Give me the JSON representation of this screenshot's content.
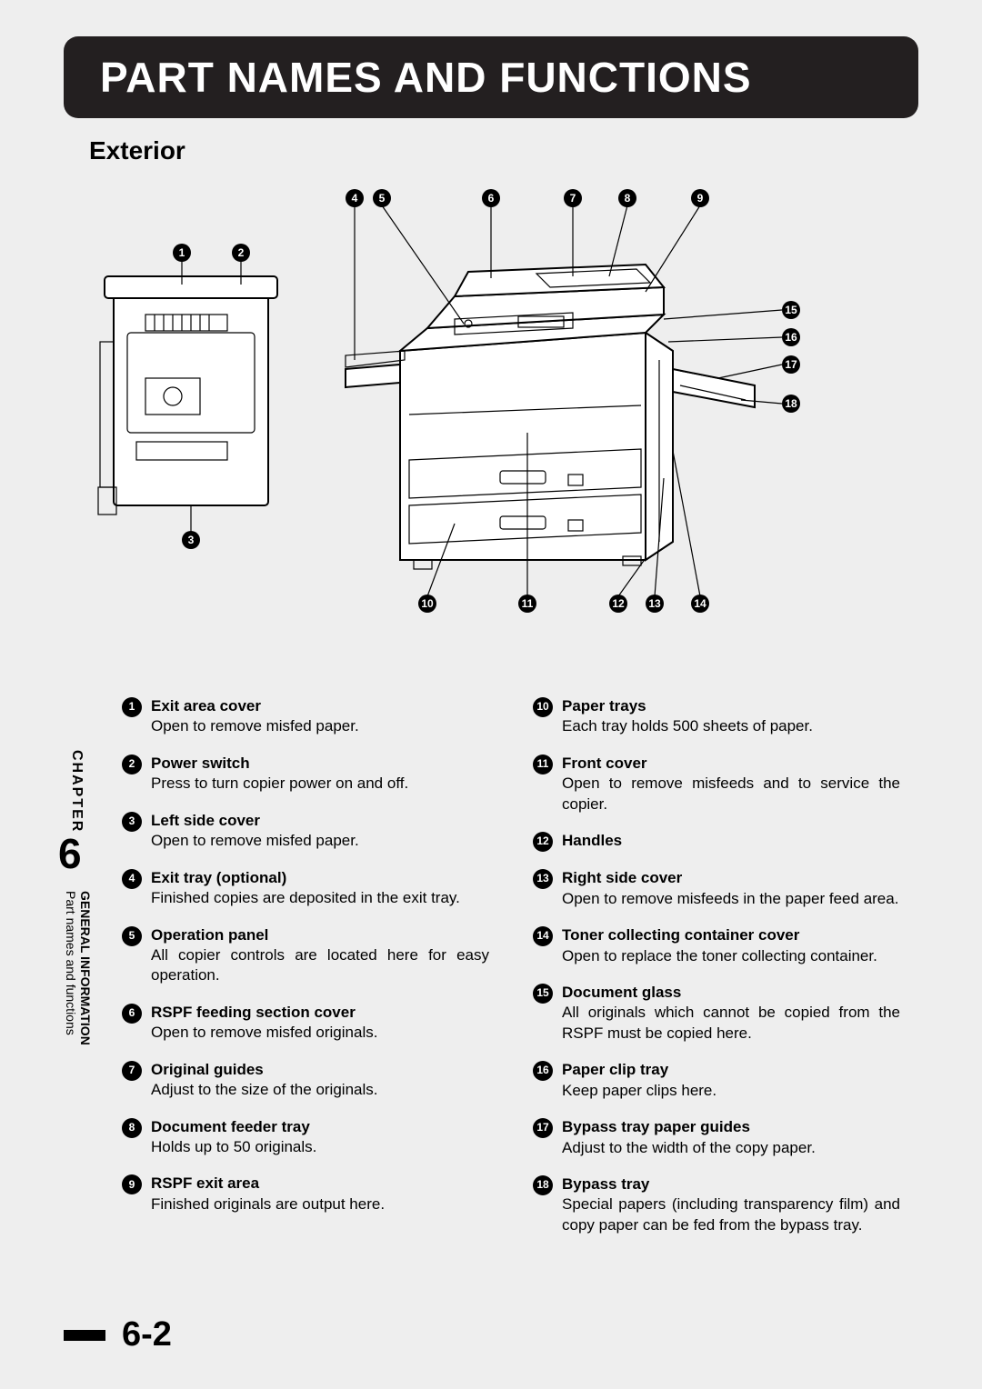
{
  "title": "PART NAMES AND FUNCTIONS",
  "section": "Exterior",
  "chapter_label": "CHAPTER",
  "chapter_number": "6",
  "side_title_bold": "GENERAL INFORMATION",
  "side_title_rest": "Part names and functions",
  "page_number": "6-2",
  "callouts": {
    "top_left": [
      "1",
      "2"
    ],
    "bottom_left": [
      "3"
    ],
    "top_row": [
      "4",
      "5",
      "6",
      "7",
      "8",
      "9"
    ],
    "right_col": [
      "15",
      "16",
      "17",
      "18"
    ],
    "bottom_row": [
      "10",
      "11",
      "12",
      "13",
      "14"
    ]
  },
  "parts_left": [
    {
      "n": "1",
      "name": "Exit area cover",
      "desc": "Open to remove misfed paper."
    },
    {
      "n": "2",
      "name": "Power switch",
      "desc": "Press to turn copier power on and off."
    },
    {
      "n": "3",
      "name": "Left side cover",
      "desc": "Open to remove misfed paper."
    },
    {
      "n": "4",
      "name": "Exit tray (optional)",
      "desc": "Finished copies are deposited in the exit tray."
    },
    {
      "n": "5",
      "name": "Operation panel",
      "desc": "All copier controls are located here for easy operation."
    },
    {
      "n": "6",
      "name": "RSPF feeding section cover",
      "desc": "Open to remove misfed originals."
    },
    {
      "n": "7",
      "name": "Original guides",
      "desc": "Adjust to the size of the originals."
    },
    {
      "n": "8",
      "name": "Document feeder tray",
      "desc": "Holds up to 50 originals."
    },
    {
      "n": "9",
      "name": "RSPF exit area",
      "desc": "Finished originals are output here."
    }
  ],
  "parts_right": [
    {
      "n": "10",
      "name": "Paper trays",
      "desc": "Each tray holds 500 sheets of paper."
    },
    {
      "n": "11",
      "name": "Front cover",
      "desc": "Open to remove misfeeds and to service the copier."
    },
    {
      "n": "12",
      "name": "Handles",
      "desc": ""
    },
    {
      "n": "13",
      "name": "Right side cover",
      "desc": "Open to remove misfeeds in the paper feed area."
    },
    {
      "n": "14",
      "name": "Toner collecting container cover",
      "desc": "Open to replace the toner collecting container."
    },
    {
      "n": "15",
      "name": "Document glass",
      "desc": "All originals which cannot be copied from the RSPF must be copied here."
    },
    {
      "n": "16",
      "name": "Paper clip tray",
      "desc": "Keep paper clips here."
    },
    {
      "n": "17",
      "name": "Bypass tray paper guides",
      "desc": "Adjust to the width of the copy paper."
    },
    {
      "n": "18",
      "name": "Bypass tray",
      "desc": "Special papers (including transparency film) and copy paper can be fed from the bypass tray."
    }
  ]
}
